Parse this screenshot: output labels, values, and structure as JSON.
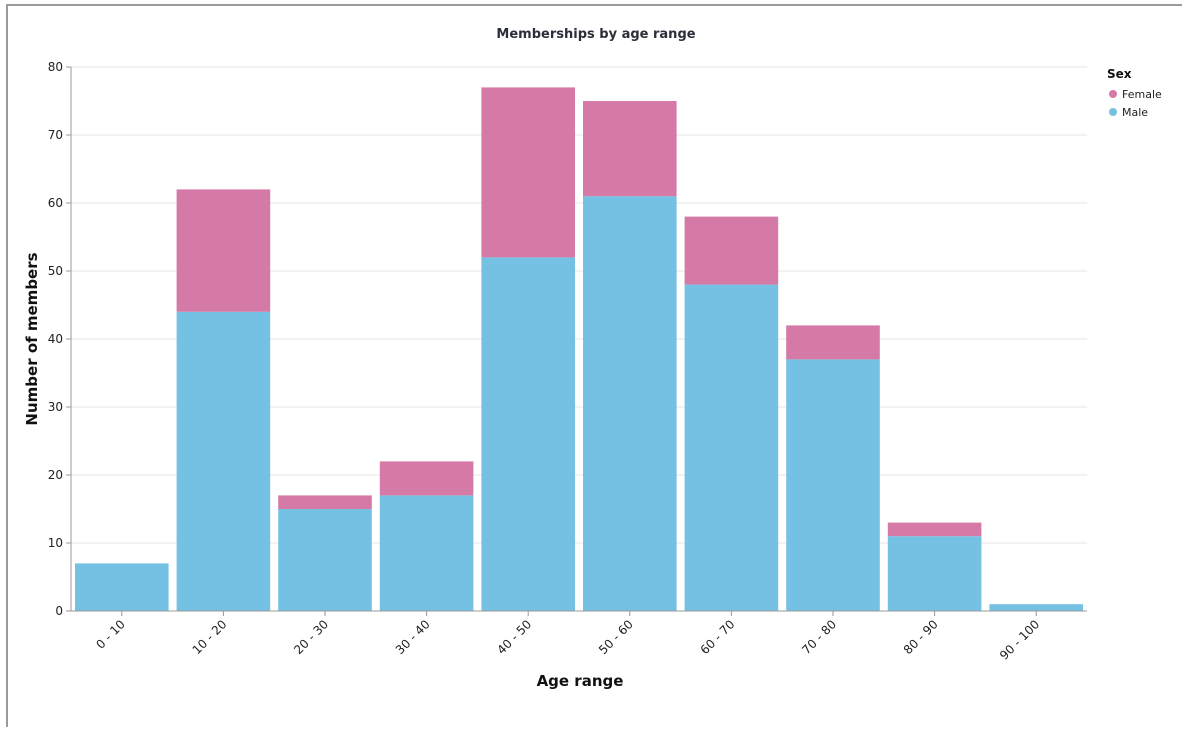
{
  "chart_data": {
    "type": "bar",
    "stacked": true,
    "title": "Memberships by age range",
    "xlabel": "Age range",
    "ylabel": "Number of members",
    "ylim": [
      0,
      80
    ],
    "yticks": [
      0,
      10,
      20,
      30,
      40,
      50,
      60,
      70,
      80
    ],
    "grid": true,
    "categories": [
      "0 - 10",
      "10 - 20",
      "20 - 30",
      "30 - 40",
      "40 - 50",
      "50 - 60",
      "60 - 70",
      "70 - 80",
      "80 - 90",
      "90 - 100"
    ],
    "series": [
      {
        "name": "Male",
        "color": "#74c1e3",
        "values": [
          7,
          44,
          15,
          17,
          52,
          61,
          48,
          37,
          11,
          1
        ]
      },
      {
        "name": "Female",
        "color": "#d57aa6",
        "values": [
          0,
          18,
          2,
          5,
          25,
          14,
          10,
          5,
          2,
          0
        ]
      }
    ],
    "legend": {
      "title": "Sex",
      "position": "top-right",
      "entries": [
        {
          "name": "Female",
          "color": "#d57aa6"
        },
        {
          "name": "Male",
          "color": "#74c1e3"
        }
      ]
    }
  }
}
